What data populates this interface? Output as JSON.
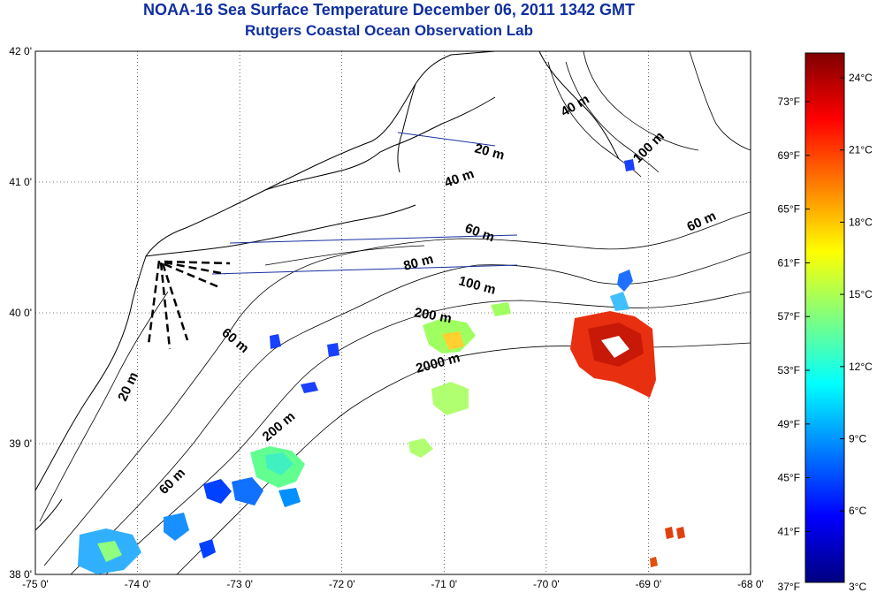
{
  "title": "NOAA-16 Sea Surface Temperature December 06, 2011 1342 GMT",
  "subtitle": "Rutgers Coastal Ocean Observation Lab",
  "lon_ticks": [
    "-75 0'",
    "-74 0'",
    "-73 0'",
    "-72 0'",
    "-71 0'",
    "-70 0'",
    "-69 0'",
    "-68 0'"
  ],
  "lat_ticks": [
    "42 0'",
    "41 0'",
    "40 0'",
    "39 0'",
    "38 0'"
  ],
  "colorbar": {
    "fahrenheit": [
      "73°F",
      "69°F",
      "65°F",
      "61°F",
      "57°F",
      "53°F",
      "49°F",
      "45°F",
      "41°F",
      "37°F"
    ],
    "celsius": [
      "24°C",
      "21°C",
      "18°C",
      "15°C",
      "12°C",
      "9°C",
      "6°C",
      "3°C"
    ],
    "colors": [
      "#00007f",
      "#0000ff",
      "#007fff",
      "#00ffff",
      "#7fff7f",
      "#ffff00",
      "#ff7f00",
      "#ff0000",
      "#7f0000"
    ]
  },
  "depth_labels": [
    "40 m",
    "100 m",
    "20 m",
    "40 m",
    "60 m",
    "60 m",
    "80 m",
    "100 m",
    "200 m",
    "60 m",
    "2000 m",
    "20 m",
    "200 m",
    "60 m"
  ],
  "coast_color": "#000000",
  "track_color": "#1a2fa0"
}
